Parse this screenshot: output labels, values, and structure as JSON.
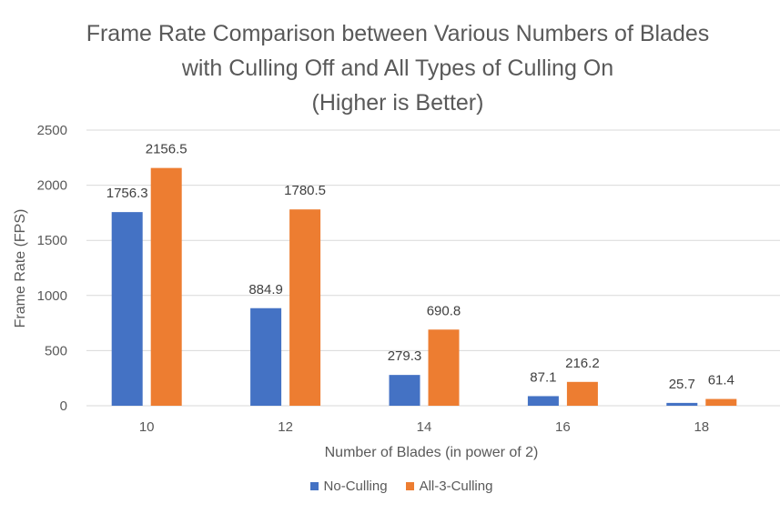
{
  "chart_data": {
    "type": "bar",
    "title_lines": [
      "Frame Rate Comparison between Various Numbers of Blades",
      "with Culling Off and All Types of Culling On",
      "(Higher is Better)"
    ],
    "xlabel": "Number of Blades (in power of 2)",
    "ylabel": "Frame Rate (FPS)",
    "categories": [
      "10",
      "12",
      "14",
      "16",
      "18"
    ],
    "ylim": [
      0,
      2500
    ],
    "yticks": [
      "0",
      "500",
      "1000",
      "1500",
      "2000",
      "2500"
    ],
    "grid": true,
    "legend_position": "bottom",
    "series": [
      {
        "name": "No-Culling",
        "color": "#4472C4",
        "values": [
          1756.3,
          884.9,
          279.3,
          87.1,
          25.7
        ],
        "labels": [
          "1756.3",
          "884.9",
          "279.3",
          "87.1",
          "25.7"
        ]
      },
      {
        "name": "All-3-Culling",
        "color": "#ED7D31",
        "values": [
          2156.5,
          1780.5,
          690.8,
          216.2,
          61.4
        ],
        "labels": [
          "2156.5",
          "1780.5",
          "690.8",
          "216.2",
          "61.4"
        ]
      }
    ]
  }
}
